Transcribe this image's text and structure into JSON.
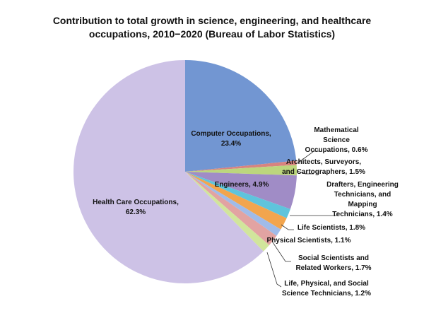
{
  "chart_data": {
    "type": "pie",
    "title": [
      "Contribution to total growth in science, engineering, and healthcare",
      "occupations, 2010−2020 (Bureau of Labor Statistics)"
    ],
    "unit": "%",
    "slices": [
      {
        "label": "Computer Occupations,",
        "value": 23.4,
        "value_text": "23.4%",
        "color": "#7296d2"
      },
      {
        "label": "Mathematical Science Occupations,",
        "value": 0.6,
        "value_text": "0.6%",
        "color": "#d8837f"
      },
      {
        "label": "Architects, Surveyors, and Cartographers,",
        "value": 1.5,
        "value_text": "1.5%",
        "color": "#bcd67d"
      },
      {
        "label": "Engineers,",
        "value": 4.9,
        "value_text": "4.9%",
        "color": "#a08cc6"
      },
      {
        "label": "Drafters, Engineering Technicians, and Mapping Technicians,",
        "value": 1.4,
        "value_text": "1.4%",
        "color": "#5fc4dc"
      },
      {
        "label": "Life Scientists,",
        "value": 1.8,
        "value_text": "1.8%",
        "color": "#f2a54e"
      },
      {
        "label": "Physical Scientists,",
        "value": 1.1,
        "value_text": "1.1%",
        "color": "#a0bbe9"
      },
      {
        "label": "Social Scientists and Related Workers,",
        "value": 1.7,
        "value_text": "1.7%",
        "color": "#e2a3a2"
      },
      {
        "label": "Life, Physical, and Social Science Technicians,",
        "value": 1.2,
        "value_text": "1.2%",
        "color": "#d1e59c"
      },
      {
        "label": "Health Care Occupations,",
        "value": 62.3,
        "value_text": "62.3%",
        "color": "#cdc2e6"
      }
    ],
    "label_lines": [
      [
        "Computer Occupations,",
        "23.4%"
      ],
      [
        "Mathematical",
        "Science",
        "Occupations, 0.6%"
      ],
      [
        "Architects, Surveyors,",
        "and Cartographers, 1.5%"
      ],
      [
        "Engineers, 4.9%"
      ],
      [
        "Drafters, Engineering",
        "Technicians, and",
        "Mapping",
        "Technicians, 1.4%"
      ],
      [
        "Life Scientists, 1.8%"
      ],
      [
        "Physical Scientists, 1.1%"
      ],
      [
        "Social Scientists and",
        "Related Workers, 1.7%"
      ],
      [
        "Life, Physical, and Social",
        "Science Technicians, 1.2%"
      ],
      [
        "Health Care Occupations,",
        "62.3%"
      ]
    ],
    "legend": "none"
  }
}
